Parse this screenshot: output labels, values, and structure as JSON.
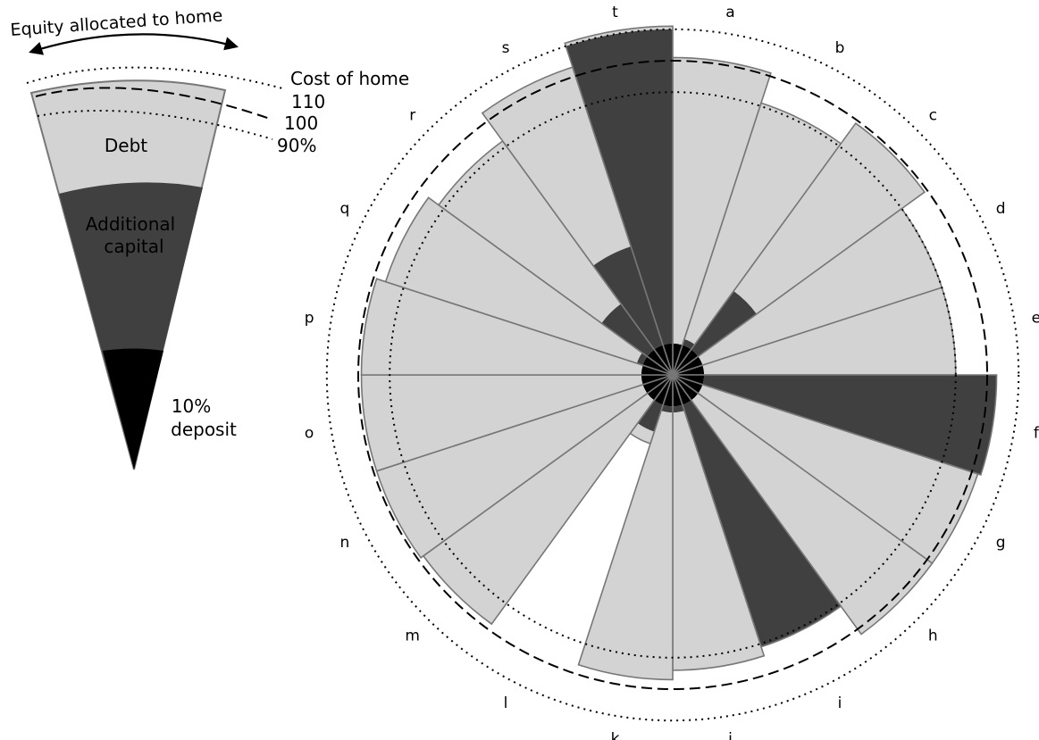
{
  "legend": {
    "top_label": "Equity allocated to home",
    "cost_label": "Cost of home",
    "level_110": "110",
    "level_100": "100",
    "level_90": "90%",
    "debt_label": "Debt",
    "additional_capital_line1": "Additional",
    "additional_capital_line2": "capital",
    "deposit_line1": "10%",
    "deposit_line2": "deposit"
  },
  "colors": {
    "debt": "#d3d3d3",
    "additional_capital": "#404040",
    "deposit": "#000000",
    "edge": "#777777"
  },
  "chart_data": {
    "type": "polar-stacked-bar",
    "units": "percent of home cost",
    "sectors": [
      "a",
      "b",
      "c",
      "d",
      "e",
      "f",
      "g",
      "h",
      "i",
      "j",
      "k",
      "l",
      "m",
      "n",
      "o",
      "p",
      "q",
      "r",
      "s",
      "t"
    ],
    "reference_levels": [
      {
        "value": 90,
        "style": "dotted"
      },
      {
        "value": 100,
        "style": "dashed"
      },
      {
        "value": 110,
        "style": "dotted"
      }
    ],
    "series": [
      {
        "name": "10% deposit",
        "values": [
          10,
          10,
          10,
          10,
          10,
          10,
          10,
          10,
          10,
          10,
          10,
          10,
          10,
          10,
          10,
          10,
          10,
          10,
          10,
          10
        ]
      },
      {
        "name": "Additional capital",
        "values": [
          0,
          2,
          23,
          0,
          0,
          93,
          0,
          0,
          81,
          2,
          2,
          9,
          0,
          0,
          0,
          0,
          2,
          18,
          33,
          100
        ]
      },
      {
        "name": "Debt",
        "values": [
          91,
          79,
          66,
          80,
          80,
          0,
          92,
          92,
          0,
          82,
          85,
          4,
          88,
          89,
          89,
          89,
          84,
          64,
          60,
          1
        ]
      }
    ],
    "totals": [
      101,
      91,
      99,
      90,
      90,
      103,
      102,
      102,
      91,
      94,
      97,
      23,
      98,
      99,
      99,
      99,
      96,
      92,
      103,
      111
    ]
  }
}
